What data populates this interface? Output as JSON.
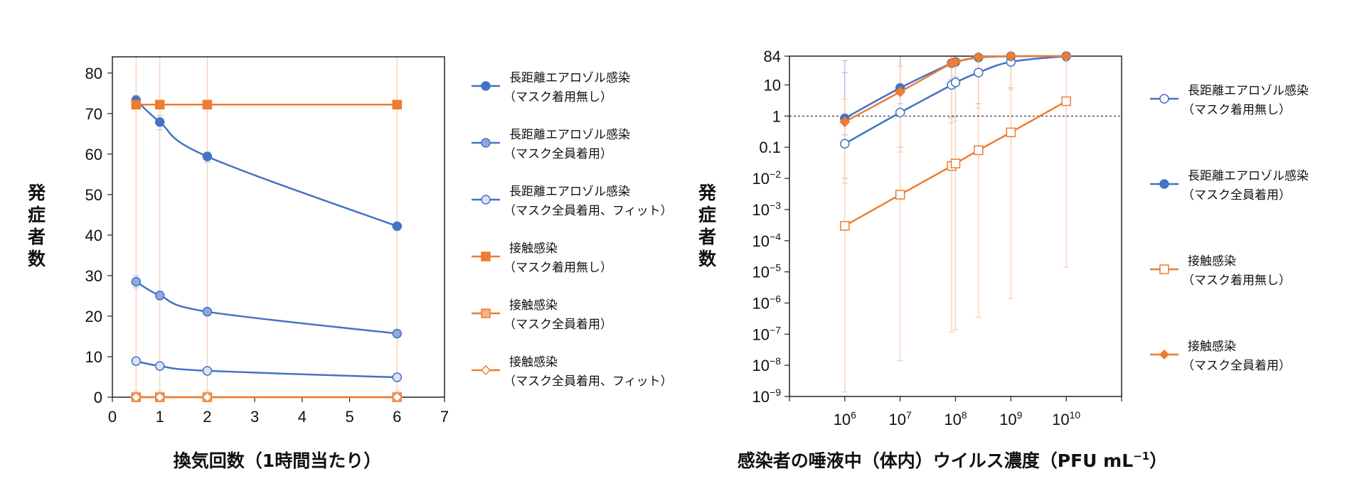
{
  "chart_data": [
    {
      "type": "line",
      "xlabel": "換気回数（1時間当たり）",
      "ylabel": "発症者数",
      "xlim": [
        0,
        7
      ],
      "ylim": [
        0,
        84
      ],
      "xticks": [
        "0",
        "1",
        "2",
        "3",
        "4",
        "5",
        "6",
        "7"
      ],
      "yticks": [
        "0",
        "10",
        "20",
        "30",
        "40",
        "50",
        "60",
        "70",
        "80"
      ],
      "x": [
        0.5,
        1,
        2,
        6
      ],
      "legend_position": "right",
      "series": [
        {
          "name": "長距離エアロゾル感染",
          "name2": "（マスク着用無し）",
          "color": "#4472C4",
          "marker": "circle",
          "fill": "#4472C4",
          "values": [
            73.3,
            67.9,
            59.4,
            42.2
          ],
          "err_low": [
            71.5,
            66,
            58,
            41.5
          ],
          "err_high": [
            74.5,
            69.5,
            60.5,
            43
          ]
        },
        {
          "name": "長距離エアロゾル感染",
          "name2": "（マスク全員着用）",
          "color": "#4472C4",
          "marker": "circle",
          "fill": "#8EA9DB",
          "values": [
            28.5,
            25.1,
            21.1,
            15.7
          ],
          "err_low": [
            27,
            24,
            20.5,
            15.2
          ],
          "err_high": [
            30,
            26.2,
            21.8,
            16.2
          ]
        },
        {
          "name": "長距離エアロゾル感染",
          "name2": "（マスク全員着用、フィット）",
          "color": "#4472C4",
          "marker": "circle",
          "fill": "#DAE3F3",
          "values": [
            8.9,
            7.7,
            6.5,
            4.9
          ],
          "err_low": [
            8.5,
            7.4,
            6.2,
            4.7
          ],
          "err_high": [
            9.3,
            8,
            6.8,
            5.1
          ]
        },
        {
          "name": "接触感染",
          "name2": "（マスク着用無し）",
          "color": "#ED7D31",
          "marker": "square",
          "fill": "#ED7D31",
          "values": [
            72.2,
            72.2,
            72.2,
            72.2
          ],
          "err_low": [
            0,
            0,
            0,
            0
          ],
          "err_high": [
            84,
            84,
            84,
            84
          ]
        },
        {
          "name": "接触感染",
          "name2": "（マスク全員着用）",
          "color": "#ED7D31",
          "marker": "square",
          "fill": "#F4B183",
          "values": [
            0,
            0,
            0,
            0
          ],
          "err_low": [
            0,
            0,
            0,
            0
          ],
          "err_high": [
            1.5,
            1.5,
            1.5,
            1.5
          ]
        },
        {
          "name": "接触感染",
          "name2": "（マスク全員着用、フィット）",
          "color": "#ED7D31",
          "marker": "diamond",
          "fill": "#FFFFFF",
          "values": [
            0,
            0,
            0,
            0
          ],
          "err_low": [
            0,
            0,
            0,
            0
          ],
          "err_high": [
            0.5,
            0.5,
            0.5,
            0.5
          ]
        }
      ]
    },
    {
      "type": "line",
      "xlabel": "感染者の唾液中（体内）ウイルス濃度（PFU mL",
      "xlabel_sup": "−1",
      "xlabel_end": "）",
      "ylabel": "発症者数",
      "xscale": "log",
      "yscale": "log",
      "xlim": [
        100000.0,
        100000000000.0
      ],
      "ylim": [
        1e-09,
        84
      ],
      "reference_line": {
        "y": 1,
        "style": "dashed"
      },
      "xticks": [
        {
          "v": 1000000.0,
          "base": "10",
          "exp": "6"
        },
        {
          "v": 10000000.0,
          "base": "10",
          "exp": "7"
        },
        {
          "v": 100000000.0,
          "base": "10",
          "exp": "8"
        },
        {
          "v": 1000000000.0,
          "base": "10",
          "exp": "9"
        },
        {
          "v": 10000000000.0,
          "base": "10",
          "exp": "10"
        }
      ],
      "yticks": [
        {
          "v": 84,
          "base": "84",
          "exp": ""
        },
        {
          "v": 10,
          "base": "10",
          "exp": ""
        },
        {
          "v": 1,
          "base": "1",
          "exp": ""
        },
        {
          "v": 0.1,
          "base": "0.1",
          "exp": ""
        },
        {
          "v": 0.01,
          "base": "10",
          "exp": "−2"
        },
        {
          "v": 0.001,
          "base": "10",
          "exp": "−3"
        },
        {
          "v": 0.0001,
          "base": "10",
          "exp": "−4"
        },
        {
          "v": 1e-05,
          "base": "10",
          "exp": "−5"
        },
        {
          "v": 1e-06,
          "base": "10",
          "exp": "−6"
        },
        {
          "v": 1e-07,
          "base": "10",
          "exp": "−7"
        },
        {
          "v": 1e-08,
          "base": "10",
          "exp": "−8"
        },
        {
          "v": 1e-09,
          "base": "10",
          "exp": "−9"
        }
      ],
      "x": [
        1000000.0,
        10000000.0,
        85000000.0,
        100000000.0,
        260000000.0,
        1000000000.0,
        10000000000.0
      ],
      "legend_position": "right",
      "series": [
        {
          "name": "長距離エアロゾル感染",
          "name2": "（マスク着用無し）",
          "color": "#4472C4",
          "marker": "circle",
          "fill": "#FFFFFF",
          "values": [
            0.13,
            1.3,
            10,
            12,
            25,
            55,
            84
          ],
          "err_low": [
            0.01,
            0.1,
            0.9,
            1,
            2.5,
            8,
            60
          ],
          "err_high": [
            60,
            84,
            84,
            84,
            84,
            84,
            84
          ]
        },
        {
          "name": "長距離エアロゾル感染",
          "name2": "（マスク全員着用）",
          "color": "#4472C4",
          "marker": "circle",
          "fill": "#4472C4",
          "values": [
            0.85,
            8,
            50,
            55,
            76,
            83,
            84
          ],
          "err_low": [
            0.25,
            2.5,
            15,
            18,
            30,
            60,
            70
          ],
          "err_high": [
            25,
            84,
            84,
            84,
            84,
            84,
            84
          ]
        },
        {
          "name": "接触感染",
          "name2": "（マスク着用無し）",
          "color": "#ED7D31",
          "marker": "square",
          "fill": "#FFFFFF",
          "values": [
            0.0003,
            0.003,
            0.025,
            0.03,
            0.08,
            0.3,
            3
          ],
          "err_low": [
            1.4e-09,
            1.4e-08,
            1.2e-07,
            1.4e-07,
            3.5e-07,
            1.4e-06,
            1.4e-05
          ],
          "err_high": [
            3.5,
            40,
            84,
            84,
            84,
            84,
            84
          ]
        },
        {
          "name": "接触感染",
          "name2": "（マスク全員着用）",
          "color": "#ED7D31",
          "marker": "diamond",
          "fill": "#ED7D31",
          "values": [
            0.65,
            6,
            50,
            55,
            78,
            84,
            84
          ],
          "err_low": [
            0.007,
            0.07,
            0.6,
            0.7,
            1.8,
            7,
            55
          ],
          "err_high": [
            3.5,
            40,
            84,
            84,
            84,
            84,
            84
          ]
        }
      ]
    }
  ]
}
